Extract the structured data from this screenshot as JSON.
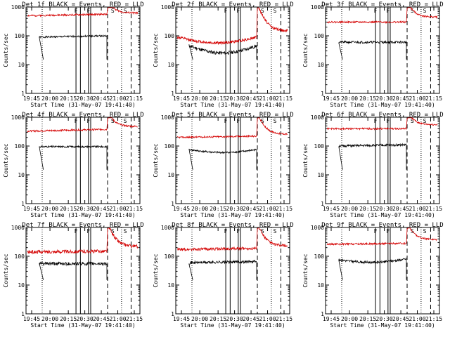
{
  "chart_data": [
    {
      "type": "line",
      "title": "Det 1f BLACK = Events, RED = LLD",
      "xlabel": "Start Time (31-May-07 19:41:40)",
      "ylabel": "Counts/sec",
      "ylim": [
        1,
        1000
      ],
      "ylog": true,
      "x_ticks": [
        "19:45",
        "20:00",
        "20:15",
        "20:30",
        "20:45",
        "21:00",
        "21:15"
      ],
      "y_ticks": [
        "1",
        "10",
        "100",
        "1000"
      ],
      "series": [
        {
          "name": "Events",
          "color": "#000000",
          "start": 56,
          "end": 145,
          "level": 90,
          "level_end": 100,
          "noise": 0.03,
          "bump": 0
        },
        {
          "name": "LLD",
          "color": "#d40000",
          "level": 500,
          "level_end": 560,
          "noise": 0.03,
          "bump": 0,
          "jump": 900,
          "tail": 620
        }
      ],
      "markers": [
        "F",
        "F",
        "S",
        "S"
      ]
    },
    {
      "type": "line",
      "title": "Det 2f BLACK = Events, RED = LLD",
      "xlabel": "Start Time (31-May-07 19:41:40)",
      "ylabel": "Counts/sec",
      "ylim": [
        1,
        1000
      ],
      "ylog": true,
      "x_ticks": [
        "19:45",
        "20:00",
        "20:15",
        "20:30",
        "20:45",
        "21:00",
        "21:15"
      ],
      "y_ticks": [
        "1",
        "10",
        "100",
        "1000"
      ],
      "series": [
        {
          "name": "Events",
          "color": "#000000",
          "start": 52,
          "end": 145,
          "level": 45,
          "level_end": 45,
          "noise": 0.06,
          "bump": -0.25
        },
        {
          "name": "LLD",
          "color": "#d40000",
          "level": 90,
          "level_end": 90,
          "noise": 0.05,
          "bump": -0.2,
          "jump": 900,
          "tail": 150
        }
      ],
      "markers": [
        "F",
        "F",
        "S",
        "S"
      ]
    },
    {
      "type": "line",
      "title": "Det 3f BLACK = Events, RED = LLD",
      "xlabel": "Start Time (31-May-07 19:41:40)",
      "ylabel": "Counts/sec",
      "ylim": [
        1,
        1000
      ],
      "ylog": true,
      "x_ticks": [
        "19:45",
        "20:00",
        "20:15",
        "20:30",
        "20:45",
        "21:00",
        "21:15"
      ],
      "y_ticks": [
        "1",
        "10",
        "100",
        "1000"
      ],
      "series": [
        {
          "name": "Events",
          "color": "#000000",
          "start": 52,
          "end": 145,
          "level": 60,
          "level_end": 60,
          "noise": 0.04,
          "bump": 0
        },
        {
          "name": "LLD",
          "color": "#d40000",
          "level": 300,
          "level_end": 300,
          "noise": 0.03,
          "bump": 0,
          "jump": 900,
          "tail": 450
        }
      ],
      "markers": [
        "F",
        "F",
        "S",
        "S"
      ]
    },
    {
      "type": "line",
      "title": "Det 4f BLACK = Events, RED = LLD",
      "xlabel": "Start Time (31-May-07 19:41:40)",
      "ylabel": "Counts/sec",
      "ylim": [
        1,
        1000
      ],
      "ylog": true,
      "x_ticks": [
        "19:45",
        "20:00",
        "20:15",
        "20:30",
        "20:45",
        "21:00",
        "21:15"
      ],
      "y_ticks": [
        "1",
        "10",
        "100",
        "1000"
      ],
      "series": [
        {
          "name": "Events",
          "color": "#000000",
          "start": 56,
          "end": 145,
          "level": 95,
          "level_end": 95,
          "noise": 0.03,
          "bump": 0
        },
        {
          "name": "LLD",
          "color": "#d40000",
          "level": 330,
          "level_end": 380,
          "noise": 0.03,
          "bump": 0,
          "jump": 900,
          "tail": 480
        }
      ],
      "markers": [
        "F",
        "F",
        "S",
        "S"
      ]
    },
    {
      "type": "line",
      "title": "Det 5f BLACK = Events, RED = LLD",
      "xlabel": "Start Time (31-May-07 19:41:40)",
      "ylabel": "Counts/sec",
      "ylim": [
        1,
        1000
      ],
      "ylog": true,
      "x_ticks": [
        "19:45",
        "20:00",
        "20:15",
        "20:30",
        "20:45",
        "21:00",
        "21:15"
      ],
      "y_ticks": [
        "1",
        "10",
        "100",
        "1000"
      ],
      "series": [
        {
          "name": "Events",
          "color": "#000000",
          "start": 52,
          "end": 145,
          "level": 75,
          "level_end": 75,
          "noise": 0.03,
          "bump": -0.1
        },
        {
          "name": "LLD",
          "color": "#d40000",
          "level": 200,
          "level_end": 220,
          "noise": 0.03,
          "bump": 0,
          "jump": 900,
          "tail": 260
        }
      ],
      "markers": [
        "F",
        "F",
        "S",
        "S"
      ]
    },
    {
      "type": "line",
      "title": "Det 6f BLACK = Events, RED = LLD",
      "xlabel": "Start Time (31-May-07 19:41:40)",
      "ylabel": "Counts/sec",
      "ylim": [
        1,
        1000
      ],
      "ylog": true,
      "x_ticks": [
        "19:45",
        "20:00",
        "20:15",
        "20:30",
        "20:45",
        "21:00",
        "21:15"
      ],
      "y_ticks": [
        "1",
        "10",
        "100",
        "1000"
      ],
      "series": [
        {
          "name": "Events",
          "color": "#000000",
          "start": 52,
          "end": 145,
          "level": 100,
          "level_end": 110,
          "noise": 0.04,
          "bump": 0
        },
        {
          "name": "LLD",
          "color": "#d40000",
          "level": 400,
          "level_end": 400,
          "noise": 0.03,
          "bump": 0,
          "jump": 900,
          "tail": 550
        }
      ],
      "markers": [
        "F",
        "F",
        "S",
        "S"
      ]
    },
    {
      "type": "line",
      "title": "Det 7f BLACK = Events, RED = LLD",
      "xlabel": "Start Time (31-May-07 19:41:40)",
      "ylabel": "Counts/sec",
      "ylim": [
        1,
        1000
      ],
      "ylog": true,
      "x_ticks": [
        "19:45",
        "20:00",
        "20:15",
        "20:30",
        "20:45",
        "21:00",
        "21:15"
      ],
      "y_ticks": [
        "1",
        "10",
        "100",
        "1000"
      ],
      "series": [
        {
          "name": "Events",
          "color": "#000000",
          "start": 56,
          "end": 145,
          "level": 55,
          "level_end": 55,
          "noise": 0.06,
          "bump": 0
        },
        {
          "name": "LLD",
          "color": "#d40000",
          "level": 140,
          "level_end": 150,
          "noise": 0.06,
          "bump": 0,
          "jump": 900,
          "tail": 220
        }
      ],
      "markers": [
        "F",
        "F",
        "S",
        "S"
      ]
    },
    {
      "type": "line",
      "title": "Det 8f BLACK = Events, RED = LLD",
      "xlabel": "Start Time (31-May-07 19:41:40)",
      "ylabel": "Counts/sec",
      "ylim": [
        1,
        1000
      ],
      "ylog": true,
      "x_ticks": [
        "19:45",
        "20:00",
        "20:15",
        "20:30",
        "20:45",
        "21:00",
        "21:15"
      ],
      "y_ticks": [
        "1",
        "10",
        "100",
        "1000"
      ],
      "series": [
        {
          "name": "Events",
          "color": "#000000",
          "start": 52,
          "end": 145,
          "level": 60,
          "level_end": 65,
          "noise": 0.05,
          "bump": 0
        },
        {
          "name": "LLD",
          "color": "#d40000",
          "level": 170,
          "level_end": 190,
          "noise": 0.05,
          "bump": 0,
          "jump": 900,
          "tail": 230
        }
      ],
      "markers": [
        "F",
        "F",
        "S",
        "S"
      ]
    },
    {
      "type": "line",
      "title": "Det 9f BLACK = Events, RED = LLD",
      "xlabel": "Start Time (31-May-07 19:41:40)",
      "ylabel": "Counts/sec",
      "ylim": [
        1,
        1000
      ],
      "ylog": true,
      "x_ticks": [
        "19:45",
        "20:00",
        "20:15",
        "20:30",
        "20:45",
        "21:00",
        "21:15"
      ],
      "y_ticks": [
        "1",
        "10",
        "100",
        "1000"
      ],
      "series": [
        {
          "name": "Events",
          "color": "#000000",
          "start": 52,
          "end": 145,
          "level": 75,
          "level_end": 80,
          "noise": 0.04,
          "bump": -0.1
        },
        {
          "name": "LLD",
          "color": "#d40000",
          "level": 260,
          "level_end": 280,
          "noise": 0.03,
          "bump": 0,
          "jump": 900,
          "tail": 380
        }
      ],
      "markers": [
        "F",
        "F",
        "S",
        "S"
      ]
    }
  ]
}
